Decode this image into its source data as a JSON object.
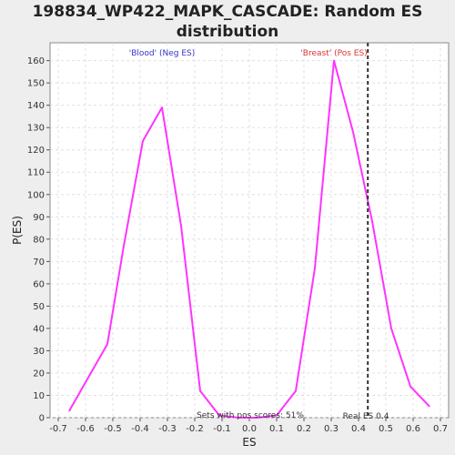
{
  "chart_data": {
    "type": "line",
    "title_line1": "198834_WP422_MAPK_CASCADE: Random ES",
    "title_line2": "distribution",
    "xlabel": "ES",
    "ylabel": "P(ES)",
    "xlim": [
      -0.73,
      0.73
    ],
    "ylim": [
      0,
      168
    ],
    "xticks": [
      -0.7,
      -0.6,
      -0.5,
      -0.4,
      -0.3,
      -0.2,
      -0.1,
      0.0,
      0.1,
      0.2,
      0.3,
      0.4,
      0.5,
      0.6,
      0.7
    ],
    "xtick_labels": [
      "-0.7",
      "-0.6",
      "-0.5",
      "-0.4",
      "-0.3",
      "-0.2",
      "-0.1",
      "0.0",
      "0.1",
      "0.2",
      "0.3",
      "0.4",
      "0.5",
      "0.6",
      "0.7"
    ],
    "yticks": [
      0,
      10,
      20,
      30,
      40,
      50,
      60,
      70,
      80,
      90,
      100,
      110,
      120,
      130,
      140,
      150,
      160
    ],
    "ytick_labels": [
      "0",
      "10",
      "20",
      "30",
      "40",
      "50",
      "60",
      "70",
      "80",
      "90",
      "100",
      "110",
      "120",
      "130",
      "140",
      "150",
      "160"
    ],
    "grid": true,
    "series": [
      {
        "color": "#ff33ff",
        "x": [
          -0.66,
          -0.59,
          -0.52,
          -0.46,
          -0.39,
          -0.32,
          -0.25,
          -0.18,
          -0.11,
          -0.04,
          0.03,
          0.1,
          0.17,
          0.24,
          0.31,
          0.38,
          0.45,
          0.52,
          0.59,
          0.66
        ],
        "y": [
          3,
          18,
          33,
          77,
          124,
          139,
          86,
          12,
          1,
          0,
          0,
          1,
          12,
          67,
          160,
          128,
          88,
          40,
          14,
          5
        ]
      }
    ],
    "real_es": 0.434,
    "real_es_color": "#333333",
    "annotations": {
      "neg_label": "'Blood' (Neg ES)",
      "neg_color": "#3333cc",
      "pos_label": "'Breast' (Pos ES)",
      "pos_color": "#dd3333",
      "pos_scores_label": "Sets with pos scores: 51%",
      "real_es_label": "Real ES 0.4"
    }
  }
}
